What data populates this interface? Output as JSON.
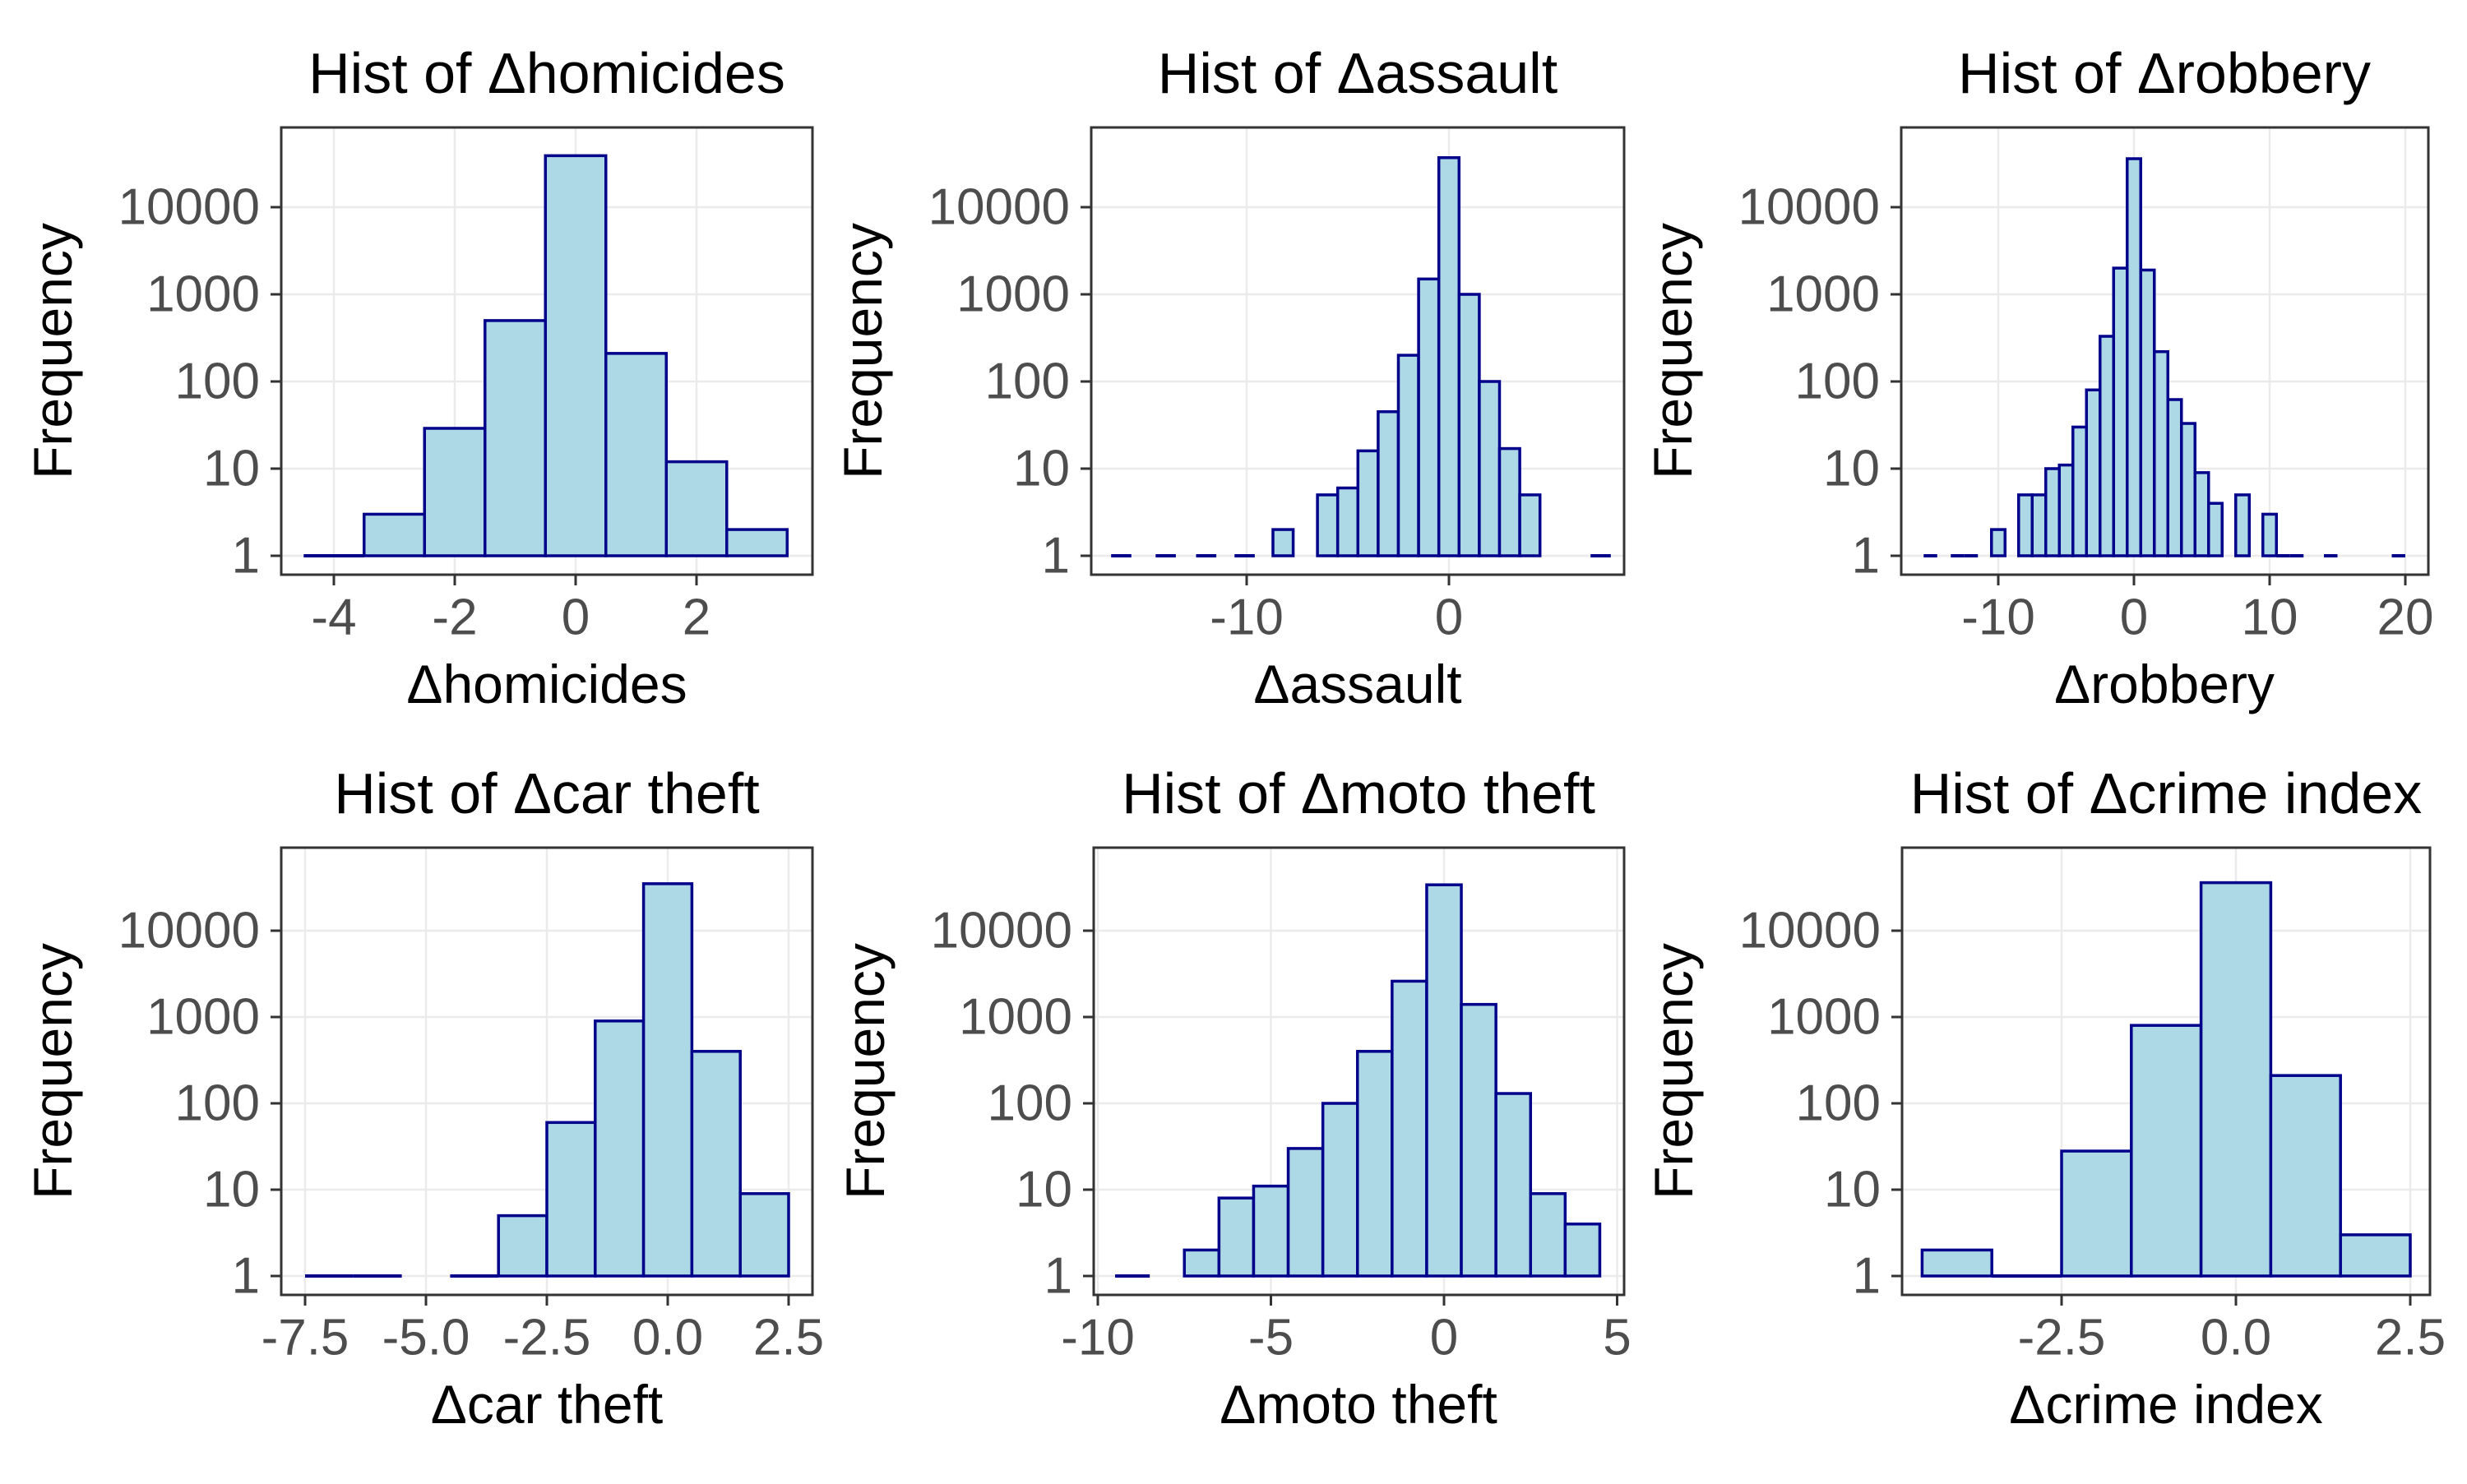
{
  "figure": {
    "background": "#ffffff",
    "bar_fill": "#ADD8E6",
    "bar_stroke": "#00008B",
    "grid_color": "#EBEBEB",
    "panel_border_color": "#333333",
    "tick_color": "#333333",
    "tick_label_color": "#4D4D4D",
    "title_color": "#000000"
  },
  "chart_data": [
    {
      "type": "bar",
      "subtype": "histogram-log-y",
      "title": "Hist of Δhomicides",
      "xlabel": "Δhomicides",
      "ylabel": "Frequency",
      "bin_width": 1,
      "bins": [
        [
          -4,
          1
        ],
        [
          -3,
          3
        ],
        [
          -2,
          29
        ],
        [
          -1,
          500
        ],
        [
          0,
          39000
        ],
        [
          1,
          210
        ],
        [
          2,
          12
        ],
        [
          3,
          2
        ]
      ],
      "x_ticks": {
        "values": [
          -4,
          -2,
          0,
          2
        ],
        "labels": [
          "-4",
          "-2",
          "0",
          "2"
        ]
      },
      "y_ticks": {
        "values": [
          1,
          10,
          100,
          1000,
          10000
        ],
        "labels": [
          "1",
          "10",
          "100",
          "1000",
          "10000"
        ]
      },
      "xlim": [
        -4.9,
        3.9
      ],
      "ylim_log": [
        0.6,
        80000
      ],
      "grid": "major"
    },
    {
      "type": "bar",
      "subtype": "histogram-log-y",
      "title": "Hist of Δassault",
      "xlabel": "Δassault",
      "ylabel": "Frequency",
      "bin_width": 1,
      "bins": [
        [
          -16.2,
          1
        ],
        [
          -14,
          1
        ],
        [
          -12,
          1
        ],
        [
          -10.1,
          1
        ],
        [
          -8.2,
          2
        ],
        [
          -6,
          5
        ],
        [
          -5,
          6
        ],
        [
          -4,
          16
        ],
        [
          -3,
          45
        ],
        [
          -2,
          200
        ],
        [
          -1,
          1500
        ],
        [
          0,
          37000
        ],
        [
          1,
          1000
        ],
        [
          2,
          100
        ],
        [
          3,
          17
        ],
        [
          4,
          5
        ],
        [
          7.5,
          1
        ]
      ],
      "x_ticks": {
        "values": [
          -10,
          0
        ],
        "labels": [
          "-10",
          "0"
        ]
      },
      "y_ticks": {
        "values": [
          1,
          10,
          100,
          1000,
          10000
        ],
        "labels": [
          "1",
          "10",
          "100",
          "1000",
          "10000"
        ]
      },
      "xlim": [
        -17.7,
        8.7
      ],
      "ylim_log": [
        0.6,
        80000
      ],
      "grid": "major"
    },
    {
      "type": "bar",
      "subtype": "histogram-log-y",
      "title": "Hist of Δrobbery",
      "xlabel": "Δrobbery",
      "ylabel": "Frequency",
      "bin_width": 1,
      "bins": [
        [
          -15,
          1
        ],
        [
          -13,
          1
        ],
        [
          -12,
          1
        ],
        [
          -10,
          2
        ],
        [
          -8,
          5
        ],
        [
          -7,
          5
        ],
        [
          -6,
          10
        ],
        [
          -5,
          11
        ],
        [
          -4,
          30
        ],
        [
          -3,
          80
        ],
        [
          -2,
          330
        ],
        [
          -1,
          2000
        ],
        [
          0,
          36000
        ],
        [
          1,
          1900
        ],
        [
          2,
          220
        ],
        [
          3,
          62
        ],
        [
          4,
          33
        ],
        [
          5,
          9
        ],
        [
          6,
          4
        ],
        [
          8,
          5
        ],
        [
          10,
          3
        ],
        [
          11,
          1
        ],
        [
          12,
          1
        ],
        [
          14.5,
          1
        ],
        [
          19.5,
          1
        ]
      ],
      "x_ticks": {
        "values": [
          -10,
          0,
          10,
          20
        ],
        "labels": [
          "-10",
          "0",
          "10",
          "20"
        ]
      },
      "y_ticks": {
        "values": [
          1,
          10,
          100,
          1000,
          10000
        ],
        "labels": [
          "1",
          "10",
          "100",
          "1000",
          "10000"
        ]
      },
      "xlim": [
        -17.2,
        21.7
      ],
      "ylim_log": [
        0.6,
        80000
      ],
      "grid": "major"
    },
    {
      "type": "bar",
      "subtype": "histogram-log-y",
      "title": "Hist of Δcar theft",
      "xlabel": "Δcar theft",
      "ylabel": "Frequency",
      "bin_width": 1,
      "bins": [
        [
          -7,
          1
        ],
        [
          -6,
          1
        ],
        [
          -4,
          1
        ],
        [
          -3,
          5
        ],
        [
          -2,
          60
        ],
        [
          -1,
          900
        ],
        [
          0,
          35000
        ],
        [
          1,
          400
        ],
        [
          2,
          9
        ]
      ],
      "x_ticks": {
        "values": [
          -7.5,
          -5,
          -2.5,
          0,
          2.5
        ],
        "labels": [
          "-7.5",
          "-5.0",
          "-2.5",
          "0.0",
          "2.5"
        ]
      },
      "y_ticks": {
        "values": [
          1,
          10,
          100,
          1000,
          10000
        ],
        "labels": [
          "1",
          "10",
          "100",
          "1000",
          "10000"
        ]
      },
      "xlim": [
        -8.0,
        3.0
      ],
      "ylim_log": [
        0.6,
        80000
      ],
      "grid": "major"
    },
    {
      "type": "bar",
      "subtype": "histogram-log-y",
      "title": "Hist of Δmoto theft",
      "xlabel": "Δmoto theft",
      "ylabel": "Frequency",
      "bin_width": 1,
      "bins": [
        [
          -9,
          1
        ],
        [
          -7,
          2
        ],
        [
          -6,
          8
        ],
        [
          -5,
          11
        ],
        [
          -4,
          30
        ],
        [
          -3,
          100
        ],
        [
          -2,
          400
        ],
        [
          -1,
          2600
        ],
        [
          0,
          34000
        ],
        [
          1,
          1400
        ],
        [
          2,
          130
        ],
        [
          3,
          9
        ],
        [
          4,
          4
        ]
      ],
      "x_ticks": {
        "values": [
          -10,
          -5,
          0,
          5
        ],
        "labels": [
          "-10",
          "-5",
          "0",
          "5"
        ]
      },
      "y_ticks": {
        "values": [
          1,
          10,
          100,
          1000,
          10000
        ],
        "labels": [
          "1",
          "10",
          "100",
          "1000",
          "10000"
        ]
      },
      "xlim": [
        -10.1,
        5.2
      ],
      "ylim_log": [
        0.6,
        80000
      ],
      "grid": "major"
    },
    {
      "type": "bar",
      "subtype": "histogram-log-y",
      "title": "Hist of Δcrime index",
      "xlabel": "Δcrime index",
      "ylabel": "Frequency",
      "bin_width": 1,
      "bins": [
        [
          -4,
          2
        ],
        [
          -3,
          1
        ],
        [
          -2,
          28
        ],
        [
          -1,
          800
        ],
        [
          0,
          36000
        ],
        [
          1,
          210
        ],
        [
          2,
          3
        ]
      ],
      "x_ticks": {
        "values": [
          -2.5,
          0,
          2.5
        ],
        "labels": [
          "-2.5",
          "0.0",
          "2.5"
        ]
      },
      "y_ticks": {
        "values": [
          1,
          10,
          100,
          1000,
          10000
        ],
        "labels": [
          "1",
          "10",
          "100",
          "1000",
          "10000"
        ]
      },
      "xlim": [
        -4.8,
        2.8
      ],
      "ylim_log": [
        0.6,
        80000
      ],
      "grid": "major"
    }
  ]
}
